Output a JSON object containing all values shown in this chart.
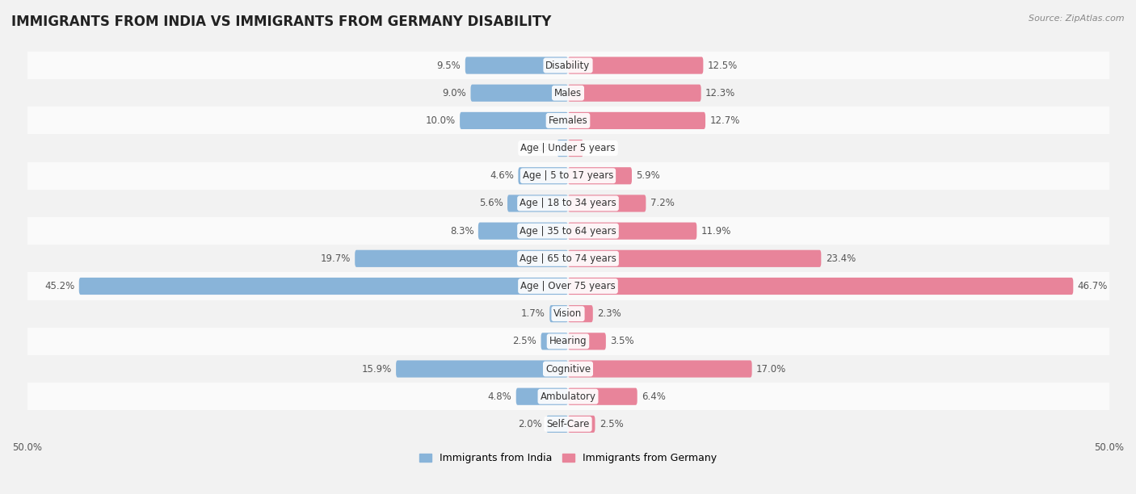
{
  "title": "IMMIGRANTS FROM INDIA VS IMMIGRANTS FROM GERMANY DISABILITY",
  "source": "Source: ZipAtlas.com",
  "categories": [
    "Disability",
    "Males",
    "Females",
    "Age | Under 5 years",
    "Age | 5 to 17 years",
    "Age | 18 to 34 years",
    "Age | 35 to 64 years",
    "Age | 65 to 74 years",
    "Age | Over 75 years",
    "Vision",
    "Hearing",
    "Cognitive",
    "Ambulatory",
    "Self-Care"
  ],
  "india_values": [
    9.5,
    9.0,
    10.0,
    1.0,
    4.6,
    5.6,
    8.3,
    19.7,
    45.2,
    1.7,
    2.5,
    15.9,
    4.8,
    2.0
  ],
  "germany_values": [
    12.5,
    12.3,
    12.7,
    1.4,
    5.9,
    7.2,
    11.9,
    23.4,
    46.7,
    2.3,
    3.5,
    17.0,
    6.4,
    2.5
  ],
  "india_color": "#89b4d9",
  "germany_color": "#e8849a",
  "india_label": "Immigrants from India",
  "germany_label": "Immigrants from Germany",
  "axis_max": 50.0,
  "bar_height": 0.62,
  "bg_row_even": "#f2f2f2",
  "bg_row_odd": "#fafafa",
  "title_fontsize": 12,
  "source_fontsize": 8,
  "value_fontsize": 8.5,
  "category_fontsize": 8.5,
  "legend_fontsize": 9
}
